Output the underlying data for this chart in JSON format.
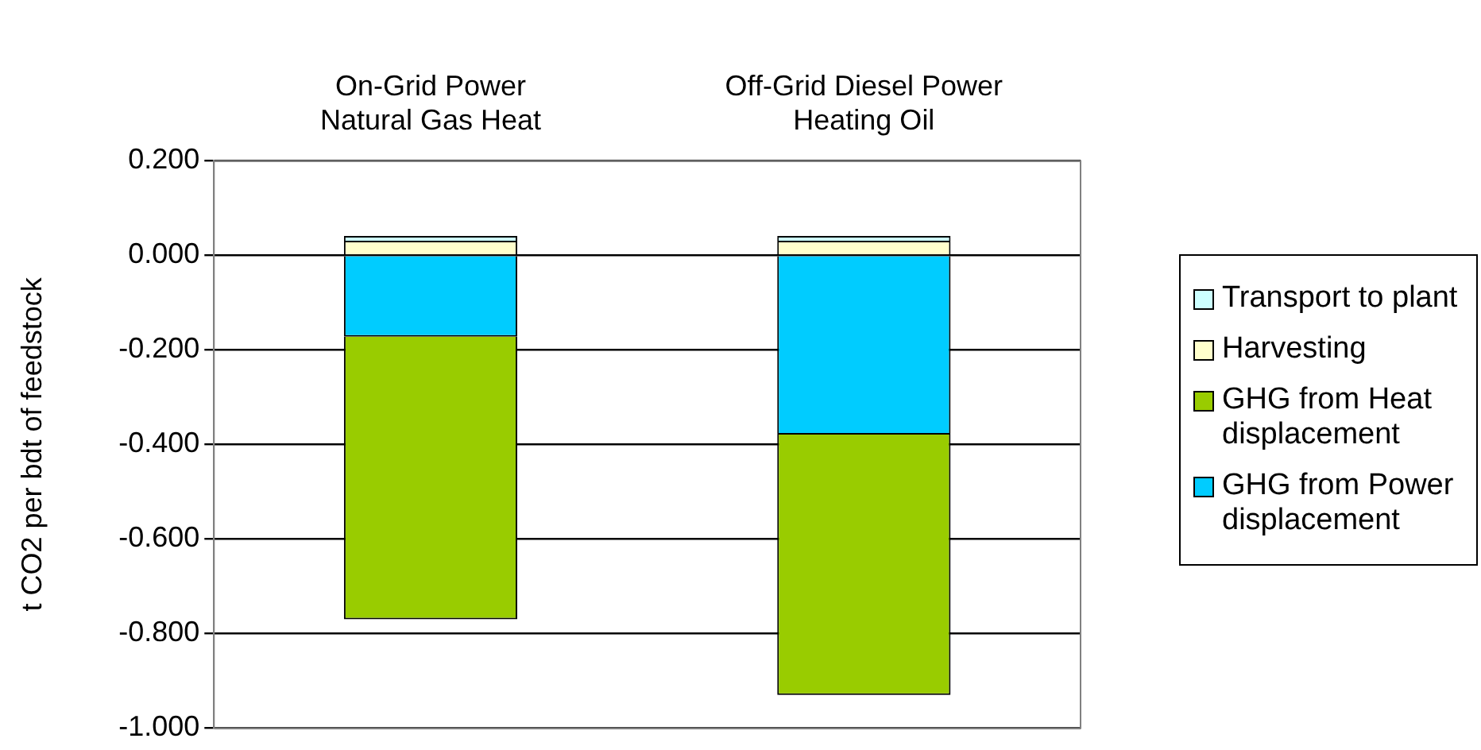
{
  "chart_data": {
    "type": "bar",
    "stacked": true,
    "ylabel": "t CO2 per bdt of feedstock",
    "categories": [
      "On-Grid Power\nNatural Gas Heat",
      "Off-Grid Diesel Power\nHeating Oil"
    ],
    "series": [
      {
        "name": "GHG from Power displacement",
        "color": "#00ccff",
        "values": [
          -0.172,
          -0.379
        ]
      },
      {
        "name": "GHG from Heat displacement",
        "color": "#99cc00",
        "values": [
          -0.598,
          -0.551
        ]
      },
      {
        "name": "Harvesting",
        "color": "#ffffcc",
        "values": [
          0.031,
          0.031
        ]
      },
      {
        "name": "Transport to plant",
        "color": "#ccffff",
        "values": [
          0.01,
          0.01
        ]
      }
    ],
    "ylim": [
      -1.0,
      0.2
    ],
    "yticks": [
      {
        "value": -1.0,
        "label": "-1.000"
      },
      {
        "value": -0.8,
        "label": "-0.800"
      },
      {
        "value": -0.6,
        "label": "-0.600"
      },
      {
        "value": -0.4,
        "label": "-0.400"
      },
      {
        "value": -0.2,
        "label": "-0.200"
      },
      {
        "value": 0,
        "label": "0.000"
      },
      {
        "value": 0.2,
        "label": "0.200"
      }
    ],
    "grid": "y",
    "legend": "right"
  }
}
